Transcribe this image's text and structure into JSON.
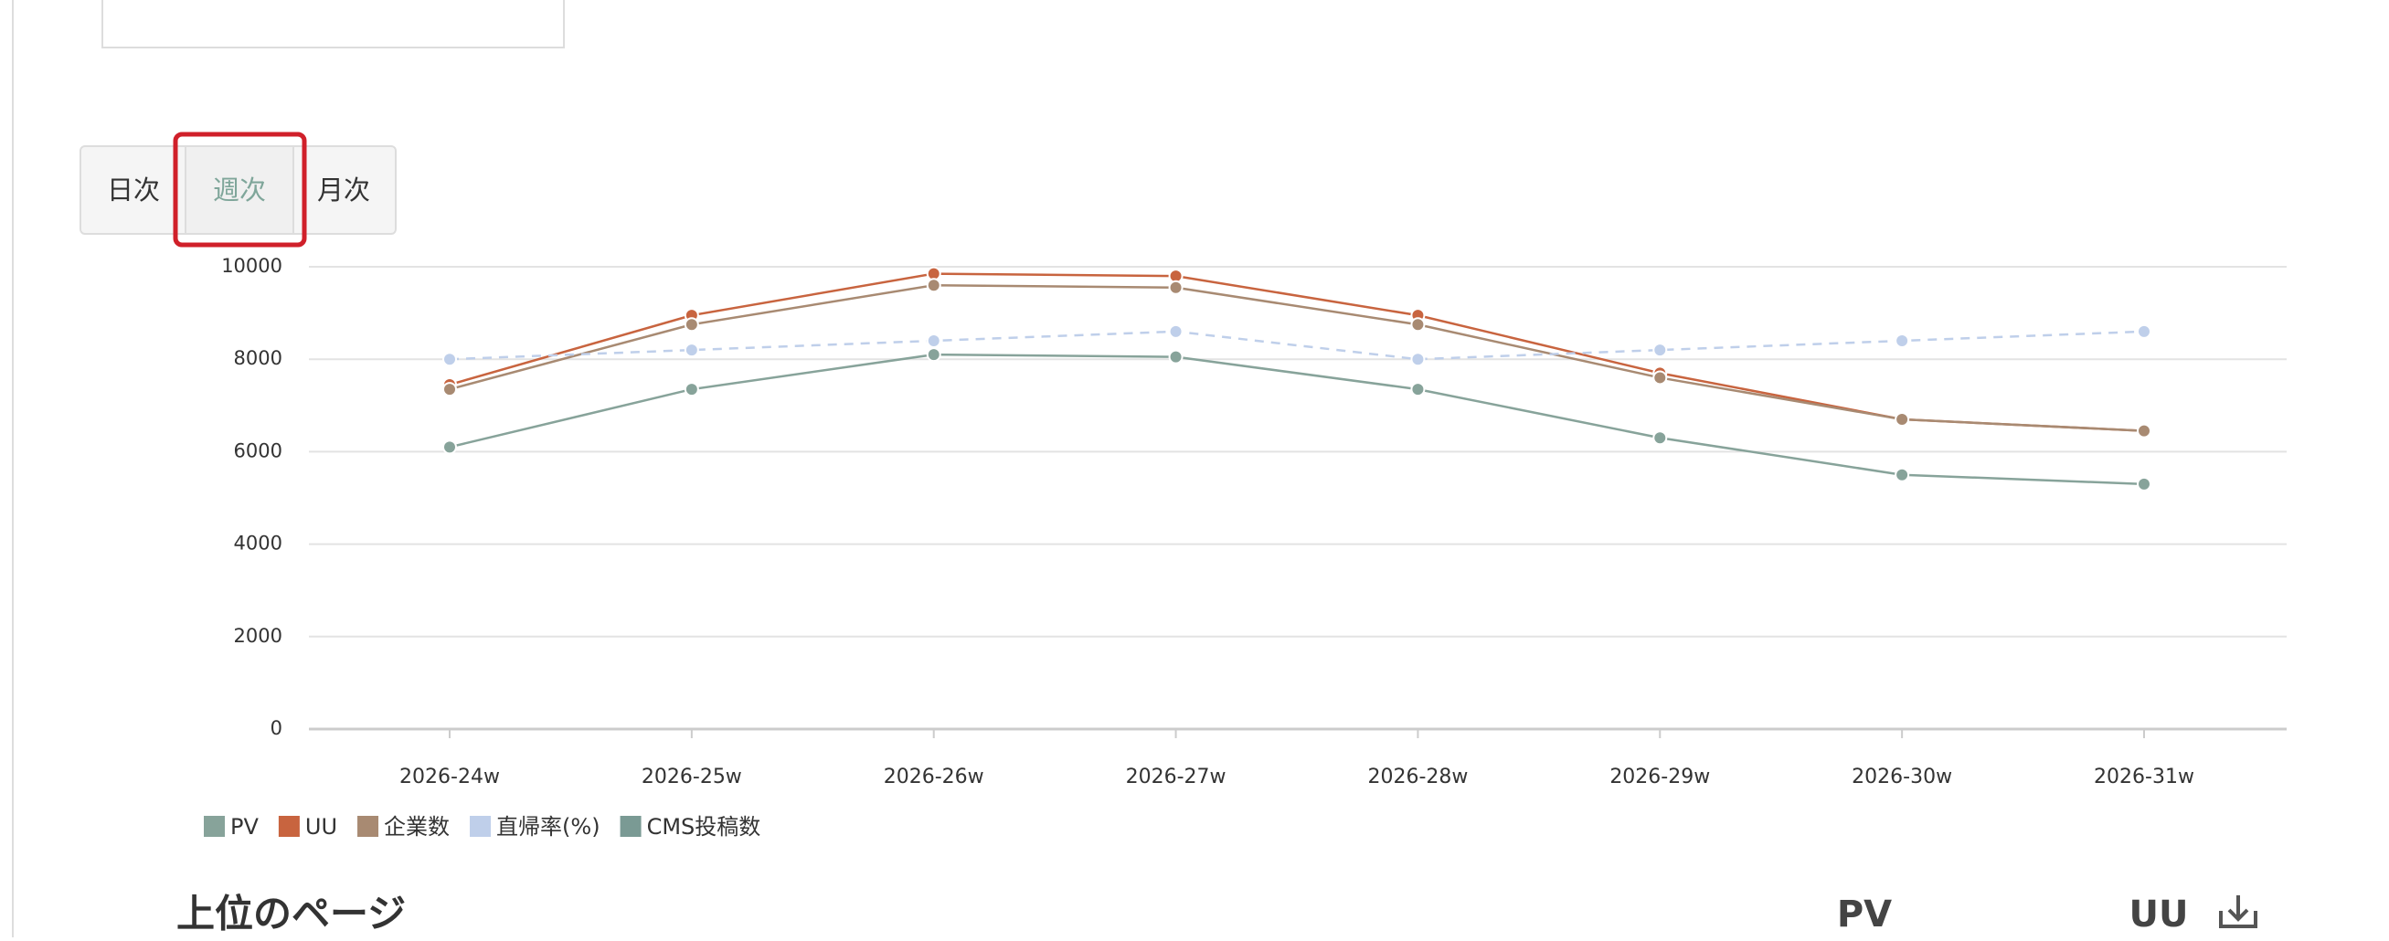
{
  "tabs": [
    "日次",
    "週次",
    "月次"
  ],
  "section_title": "上位のページ",
  "columns": [
    "PV",
    "UU"
  ],
  "chart_data": {
    "type": "line",
    "categories": [
      "2026-24w",
      "2026-25w",
      "2026-26w",
      "2026-27w",
      "2026-28w",
      "2026-29w",
      "2026-30w",
      "2026-31w"
    ],
    "ylim": [
      0,
      10000
    ],
    "yticks": [
      0,
      2000,
      4000,
      6000,
      8000,
      10000
    ],
    "grid": true,
    "series": [
      {
        "name": "PV",
        "color": "#87a39a",
        "values": [
          6100,
          7350,
          8100,
          8050,
          7350,
          6300,
          5500,
          5300
        ]
      },
      {
        "name": "UU",
        "color": "#c8643f",
        "values": [
          7450,
          8950,
          9850,
          9800,
          8950,
          7700,
          6700,
          6450
        ]
      },
      {
        "name": "企業数",
        "color": "#a88a72",
        "values": [
          7350,
          8750,
          9600,
          9550,
          8750,
          7600,
          6700,
          6450
        ]
      },
      {
        "name": "直帰率(%)",
        "color": "#bfcfea",
        "dashed": true,
        "values": [
          8000,
          8200,
          8400,
          8600,
          8000,
          8200,
          8400,
          8600
        ]
      },
      {
        "name": "CMS投稿数",
        "color": "#7a9a94",
        "values": [
          null,
          null,
          null,
          null,
          null,
          null,
          null,
          null
        ]
      }
    ]
  }
}
